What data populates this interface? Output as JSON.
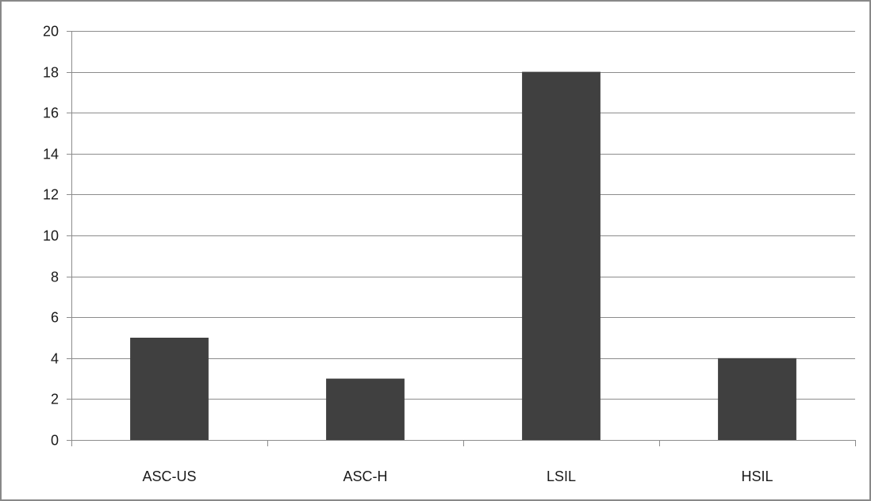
{
  "chart_data": {
    "type": "bar",
    "title": "",
    "xlabel": "",
    "ylabel": "",
    "categories": [
      "ASC-US",
      "ASC-H",
      "LSIL",
      "HSIL"
    ],
    "values": [
      5,
      3,
      18,
      4
    ],
    "ylim": [
      0,
      20
    ],
    "yticks": [
      "0",
      "2",
      "4",
      "6",
      "8",
      "10",
      "12",
      "14",
      "16",
      "18",
      "20"
    ],
    "grid": true,
    "legend": "none",
    "colors": {
      "bar": "#404040",
      "grid": "#8c8c8c",
      "axis": "#8c8c8c",
      "frame": "#888888"
    }
  }
}
